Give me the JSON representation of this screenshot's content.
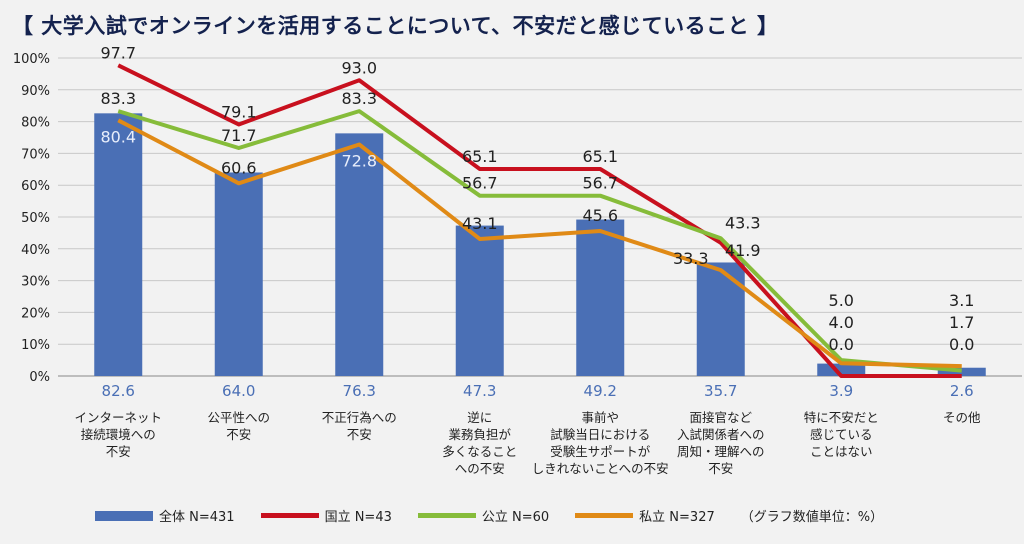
{
  "chart_data": {
    "type": "bar+line",
    "title": "【 大学入試でオンラインを活用することについて、不安だと感じていること 】",
    "categories": [
      [
        "インターネット",
        "接続環境への",
        "不安"
      ],
      [
        "公平性への",
        "不安"
      ],
      [
        "不正行為への",
        "不安"
      ],
      [
        "逆に",
        "業務負担が",
        "多くなること",
        "への不安"
      ],
      [
        "事前や",
        "試験当日における",
        "受験生サポートが",
        "しきれないことへの不安"
      ],
      [
        "面接官など",
        "入試関係者への",
        "周知・理解への",
        "不安"
      ],
      [
        "特に不安だと",
        "感じている",
        "ことはない"
      ],
      [
        "その他"
      ]
    ],
    "ylim": [
      0,
      100
    ],
    "yticks": [
      "0%",
      "10%",
      "20%",
      "30%",
      "40%",
      "50%",
      "60%",
      "70%",
      "80%",
      "90%",
      "100%"
    ],
    "grid": true,
    "legend_placement": "bottom",
    "units_note": "（グラフ数値単位：%）",
    "series": [
      {
        "name": "全体 N=431",
        "type": "bar",
        "color": "#4a6fb5",
        "values": [
          82.6,
          64.0,
          76.3,
          47.3,
          49.2,
          35.7,
          3.9,
          2.6
        ]
      },
      {
        "name": "国立 N=43",
        "type": "line",
        "color": "#c8101e",
        "values": [
          97.7,
          79.1,
          93.0,
          65.1,
          65.1,
          41.9,
          0.0,
          0.0
        ]
      },
      {
        "name": "公立 N=60",
        "type": "line",
        "color": "#86bc3a",
        "values": [
          83.3,
          71.7,
          83.3,
          56.7,
          56.7,
          43.3,
          5.0,
          1.7
        ]
      },
      {
        "name": "私立 N=327",
        "type": "line",
        "color": "#e08a16",
        "values": [
          80.4,
          60.6,
          72.8,
          43.1,
          45.6,
          33.3,
          4.0,
          3.1
        ]
      }
    ]
  }
}
